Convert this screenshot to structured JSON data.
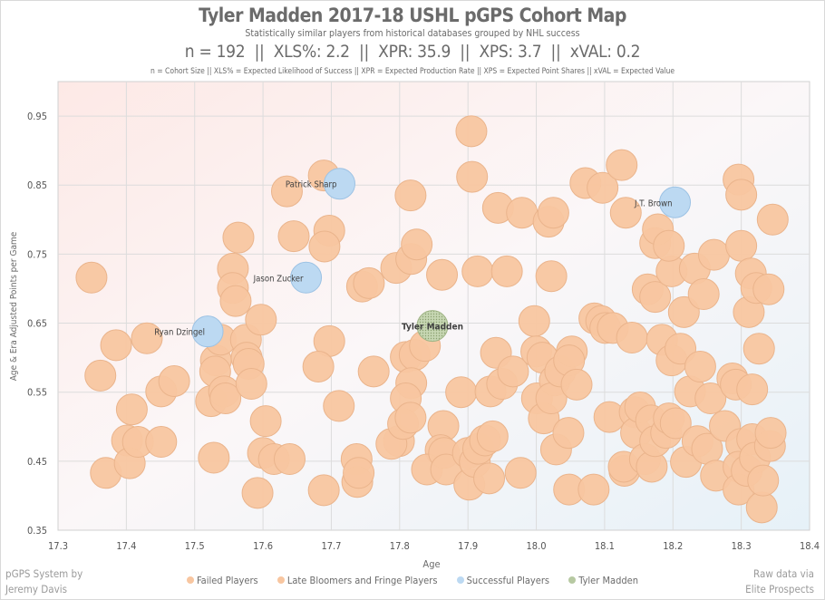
{
  "title": "Tyler Madden 2017-18 USHL pGPS Cohort Map",
  "subtitle": "Statistically similar players from historical databases grouped by NHL success",
  "stats": "n = 192  ||  XLS%: 2.2  ||  XPR: 35.9  ||  XPS: 3.7  ||  xVAL: 0.2",
  "stats_note": "n = Cohort Size || XLS% = Expected Likelihood of Success || XPR = Expected Production Rate || XPS = Expected Point Shares || xVAL = Expected Value",
  "credit_left": [
    "pGPS System by",
    "Jeremy Davis"
  ],
  "credit_right": [
    "Raw data via",
    "Elite Prospects"
  ],
  "colors": {
    "failed": "#f8c6a0",
    "late": "#f8c6a0",
    "successful": "#bcd9f2",
    "player": "#b7c9a2"
  },
  "chart_data": {
    "type": "scatter",
    "xlabel": "Age",
    "ylabel": "Age & Era Adjusted Points per Game",
    "xlim": [
      17.3,
      18.4
    ],
    "ylim": [
      0.35,
      1.0
    ],
    "xticks": [
      "17.3",
      "17.4",
      "17.5",
      "17.6",
      "17.7",
      "17.8",
      "17.9",
      "18.0",
      "18.1",
      "18.2",
      "18.3",
      "18.4"
    ],
    "yticks": [
      "0.35",
      "0.45",
      "0.55",
      "0.65",
      "0.75",
      "0.85",
      "0.95"
    ],
    "grid": true,
    "legend": [
      "Failed Players",
      "Late Bloomers and Fringe Players",
      "Successful Players",
      "Tyler Madden"
    ],
    "legend_position": "bottom",
    "series": [
      {
        "name": "Failed Players",
        "points": [
          [
            17.349,
            0.716
          ],
          [
            17.362,
            0.574
          ],
          [
            17.37,
            0.433
          ],
          [
            17.385,
            0.618
          ],
          [
            17.401,
            0.48
          ],
          [
            17.408,
            0.525
          ],
          [
            17.405,
            0.447
          ],
          [
            17.417,
            0.478
          ],
          [
            17.43,
            0.628
          ],
          [
            17.451,
            0.478
          ],
          [
            17.451,
            0.551
          ],
          [
            17.47,
            0.566
          ],
          [
            17.528,
            0.455
          ],
          [
            17.524,
            0.537
          ],
          [
            17.531,
            0.596
          ],
          [
            17.53,
            0.58
          ],
          [
            17.538,
            0.626
          ],
          [
            17.543,
            0.551
          ],
          [
            17.545,
            0.541
          ],
          [
            17.556,
            0.729
          ],
          [
            17.556,
            0.701
          ],
          [
            17.56,
            0.682
          ],
          [
            17.564,
            0.774
          ],
          [
            17.575,
            0.626
          ],
          [
            17.576,
            0.6
          ],
          [
            17.579,
            0.591
          ],
          [
            17.583,
            0.562
          ],
          [
            17.597,
            0.655
          ],
          [
            17.604,
            0.508
          ],
          [
            17.6,
            0.462
          ],
          [
            17.592,
            0.404
          ],
          [
            17.616,
            0.453
          ],
          [
            17.639,
            0.453
          ],
          [
            17.635,
            0.841
          ],
          [
            17.645,
            0.776
          ],
          [
            17.689,
            0.864
          ],
          [
            17.697,
            0.784
          ],
          [
            17.69,
            0.761
          ],
          [
            17.697,
            0.624
          ],
          [
            17.681,
            0.587
          ],
          [
            17.689,
            0.408
          ],
          [
            17.711,
            0.53
          ],
          [
            17.737,
            0.453
          ],
          [
            17.738,
            0.42
          ],
          [
            17.74,
            0.433
          ],
          [
            17.745,
            0.703
          ],
          [
            17.755,
            0.708
          ],
          [
            17.762,
            0.58
          ],
          [
            17.795,
            0.73
          ],
          [
            17.799,
            0.479
          ],
          [
            17.788,
            0.475
          ],
          [
            17.817,
            0.743
          ],
          [
            17.825,
            0.764
          ],
          [
            17.816,
            0.835
          ],
          [
            17.809,
            0.601
          ],
          [
            17.822,
            0.604
          ],
          [
            17.817,
            0.563
          ],
          [
            17.809,
            0.541
          ],
          [
            17.805,
            0.504
          ],
          [
            17.816,
            0.513
          ],
          [
            17.837,
            0.617
          ],
          [
            17.862,
            0.72
          ],
          [
            17.864,
            0.501
          ],
          [
            17.86,
            0.466
          ],
          [
            17.84,
            0.438
          ],
          [
            17.865,
            0.462
          ],
          [
            17.868,
            0.438
          ],
          [
            17.89,
            0.55
          ],
          [
            17.905,
            0.928
          ],
          [
            17.906,
            0.862
          ],
          [
            17.914,
            0.725
          ],
          [
            17.9,
            0.462
          ],
          [
            17.902,
            0.416
          ],
          [
            17.91,
            0.449
          ],
          [
            17.915,
            0.468
          ],
          [
            17.925,
            0.48
          ],
          [
            17.933,
            0.551
          ],
          [
            17.931,
            0.425
          ],
          [
            17.936,
            0.486
          ],
          [
            17.941,
            0.607
          ],
          [
            17.944,
            0.817
          ],
          [
            17.95,
            0.562
          ],
          [
            17.957,
            0.725
          ],
          [
            17.966,
            0.58
          ],
          [
            17.977,
            0.433
          ],
          [
            17.979,
            0.81
          ],
          [
            17.997,
            0.653
          ],
          [
            18.0,
            0.609
          ],
          [
            18.001,
            0.541
          ],
          [
            18.011,
            0.512
          ],
          [
            18.009,
            0.6
          ],
          [
            18.018,
            0.797
          ],
          [
            18.025,
            0.81
          ],
          [
            18.022,
            0.718
          ],
          [
            18.027,
            0.567
          ],
          [
            18.022,
            0.541
          ],
          [
            18.029,
            0.467
          ],
          [
            18.035,
            0.58
          ],
          [
            18.047,
            0.491
          ],
          [
            18.048,
            0.409
          ],
          [
            18.052,
            0.609
          ],
          [
            18.048,
            0.596
          ],
          [
            18.059,
            0.561
          ],
          [
            18.072,
            0.853
          ],
          [
            18.084,
            0.409
          ],
          [
            18.085,
            0.657
          ],
          [
            18.095,
            0.653
          ],
          [
            18.097,
            0.846
          ],
          [
            18.101,
            0.643
          ],
          [
            18.107,
            0.514
          ],
          [
            18.112,
            0.643
          ],
          [
            18.125,
            0.879
          ],
          [
            18.129,
            0.436
          ],
          [
            18.131,
            0.81
          ],
          [
            18.14,
            0.629
          ],
          [
            18.128,
            0.442
          ],
          [
            18.144,
            0.521
          ],
          [
            18.146,
            0.491
          ],
          [
            18.152,
            0.528
          ],
          [
            18.159,
            0.453
          ],
          [
            18.163,
            0.699
          ],
          [
            18.168,
            0.509
          ],
          [
            18.169,
            0.442
          ],
          [
            18.174,
            0.688
          ],
          [
            18.174,
            0.766
          ],
          [
            18.174,
            0.479
          ],
          [
            18.178,
            0.786
          ],
          [
            18.184,
            0.626
          ],
          [
            18.19,
            0.491
          ],
          [
            18.194,
            0.512
          ],
          [
            18.198,
            0.596
          ],
          [
            18.198,
            0.725
          ],
          [
            18.194,
            0.762
          ],
          [
            18.204,
            0.505
          ],
          [
            18.211,
            0.613
          ],
          [
            18.216,
            0.666
          ],
          [
            18.219,
            0.449
          ],
          [
            18.225,
            0.551
          ],
          [
            18.232,
            0.729
          ],
          [
            18.236,
            0.479
          ],
          [
            18.24,
            0.587
          ],
          [
            18.245,
            0.692
          ],
          [
            18.25,
            0.468
          ],
          [
            18.255,
            0.541
          ],
          [
            18.26,
            0.749
          ],
          [
            18.263,
            0.429
          ],
          [
            18.276,
            0.501
          ],
          [
            18.287,
            0.57
          ],
          [
            18.292,
            0.561
          ],
          [
            18.296,
            0.858
          ],
          [
            18.3,
            0.836
          ],
          [
            18.3,
            0.762
          ],
          [
            18.3,
            0.475
          ],
          [
            18.296,
            0.442
          ],
          [
            18.296,
            0.409
          ],
          [
            18.308,
            0.436
          ],
          [
            18.311,
            0.666
          ],
          [
            18.314,
            0.722
          ],
          [
            18.316,
            0.482
          ],
          [
            18.316,
            0.554
          ],
          [
            18.322,
            0.701
          ],
          [
            18.326,
            0.613
          ],
          [
            18.32,
            0.455
          ],
          [
            18.33,
            0.383
          ],
          [
            18.332,
            0.422
          ],
          [
            18.34,
            0.699
          ],
          [
            18.342,
            0.472
          ],
          [
            18.346,
            0.8
          ],
          [
            18.343,
            0.491
          ]
        ]
      },
      {
        "name": "Late Bloomers and Fringe Players",
        "points": []
      },
      {
        "name": "Successful Players",
        "points": [
          {
            "label": "Ryan Dzingel",
            "x": 17.519,
            "y": 0.638
          },
          {
            "label": "Jason Zucker",
            "x": 17.663,
            "y": 0.716
          },
          {
            "label": "Patrick Sharp",
            "x": 17.712,
            "y": 0.852
          },
          {
            "label": "J.T. Brown",
            "x": 18.203,
            "y": 0.825
          }
        ]
      },
      {
        "name": "Tyler Madden",
        "points": [
          {
            "label": "Tyler Madden",
            "x": 17.848,
            "y": 0.646
          }
        ]
      }
    ]
  }
}
